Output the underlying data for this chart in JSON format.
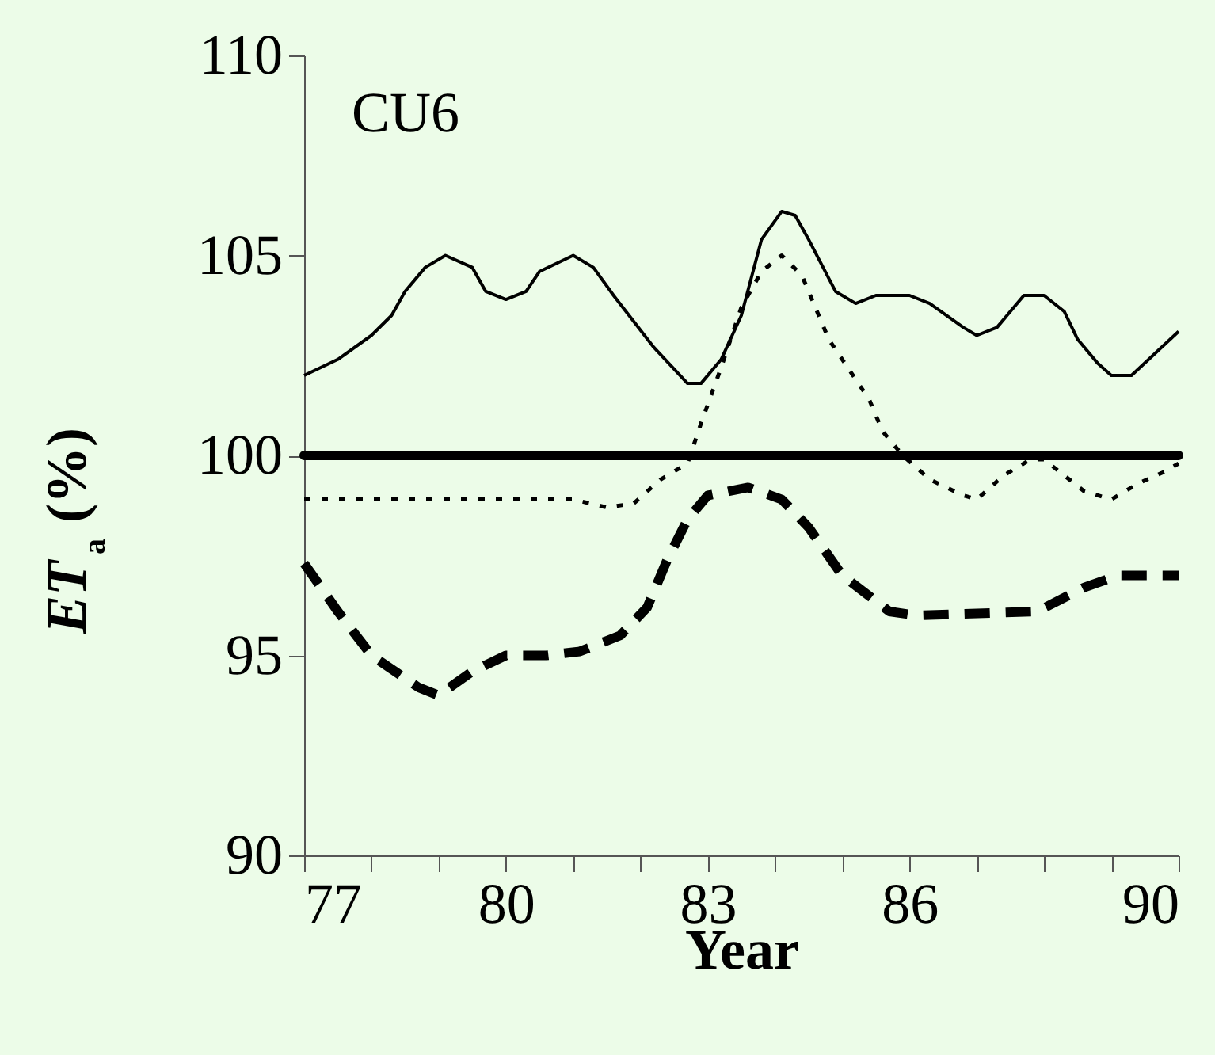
{
  "chart_data": {
    "type": "line",
    "xlabel": "Year",
    "ylabel": "ET$_{a}$ (%)",
    "annotations": [
      "CU6"
    ],
    "xlim": [
      77,
      90
    ],
    "xticks": [
      77,
      {
        "value": 78,
        "label": null
      },
      {
        "value": 79,
        "label": null
      },
      80,
      {
        "value": 81,
        "label": null
      },
      {
        "value": 82,
        "label": null
      },
      83,
      {
        "value": 84,
        "label": null
      },
      {
        "value": 85,
        "label": null
      },
      86,
      {
        "value": 87,
        "label": null
      },
      {
        "value": 88,
        "label": null
      },
      {
        "value": 89,
        "label": null
      },
      90
    ],
    "ylim": [
      90,
      110
    ],
    "yticks": [
      90,
      95,
      100,
      105,
      110
    ],
    "grid": false,
    "legend": false,
    "marker": "none",
    "ref_lines": [
      {
        "axis": "y",
        "value": 100,
        "color": "#000000",
        "line_style": "solid"
      }
    ],
    "series": [
      {
        "color": "#000000",
        "line_style": "solid",
        "x": [
          77,
          77.5,
          78.0,
          78.3,
          78.5,
          78.8,
          79.1,
          79.5,
          79.7,
          80.0,
          80.3,
          80.5,
          81.0,
          81.3,
          81.6,
          82.2,
          82.7,
          82.9,
          83.2,
          83.5,
          83.8,
          84.1,
          84.3,
          84.5,
          84.9,
          85.2,
          85.5,
          86.0,
          86.3,
          86.8,
          87.0,
          87.3,
          87.7,
          88.0,
          88.3,
          88.5,
          88.8,
          89.0,
          89.3,
          90.0
        ],
        "values": [
          102.0,
          102.4,
          103.0,
          103.5,
          104.1,
          104.7,
          105.0,
          104.7,
          104.1,
          103.9,
          104.1,
          104.6,
          105.0,
          104.7,
          104.0,
          102.7,
          101.8,
          101.8,
          102.4,
          103.5,
          105.4,
          106.1,
          106.0,
          105.4,
          104.1,
          103.8,
          104.0,
          104.0,
          103.8,
          103.2,
          103.0,
          103.2,
          104.0,
          104.0,
          103.6,
          102.9,
          102.3,
          102.0,
          102.0,
          103.1
        ]
      },
      {
        "color": "#000000",
        "line_style": "dotted",
        "x": [
          77,
          78,
          79,
          80,
          81,
          81.5,
          81.9,
          82.3,
          82.7,
          82.9,
          83.2,
          83.5,
          83.8,
          84.1,
          84.4,
          84.8,
          85.4,
          85.6,
          85.9,
          86.3,
          86.8,
          87.0,
          87.4,
          87.8,
          88.0,
          88.6,
          89.0,
          89.4,
          89.8,
          90.0
        ],
        "values": [
          98.9,
          98.9,
          98.9,
          98.9,
          98.9,
          98.7,
          98.8,
          99.4,
          99.8,
          100.8,
          102.2,
          103.7,
          104.6,
          105.0,
          104.5,
          102.9,
          101.4,
          100.6,
          100.0,
          99.4,
          99.0,
          98.9,
          99.5,
          99.9,
          99.9,
          99.1,
          98.9,
          99.3,
          99.6,
          99.8
        ]
      },
      {
        "color": "#000000",
        "line_style": "dashed",
        "x": [
          77,
          77.5,
          78.0,
          78.7,
          79.0,
          79.5,
          80.0,
          80.6,
          81.1,
          81.7,
          82.1,
          82.4,
          82.7,
          83.0,
          83.6,
          84.1,
          84.5,
          85.0,
          85.7,
          86.1,
          87.9,
          88.6,
          89.1,
          89.8,
          90.0
        ],
        "values": [
          97.3,
          96.1,
          95.0,
          94.2,
          94.0,
          94.6,
          95.0,
          95.0,
          95.1,
          95.5,
          96.2,
          97.4,
          98.4,
          99.0,
          99.2,
          98.9,
          98.2,
          97.0,
          96.1,
          96.0,
          96.1,
          96.7,
          97.0,
          97.0,
          97.0
        ]
      }
    ]
  }
}
